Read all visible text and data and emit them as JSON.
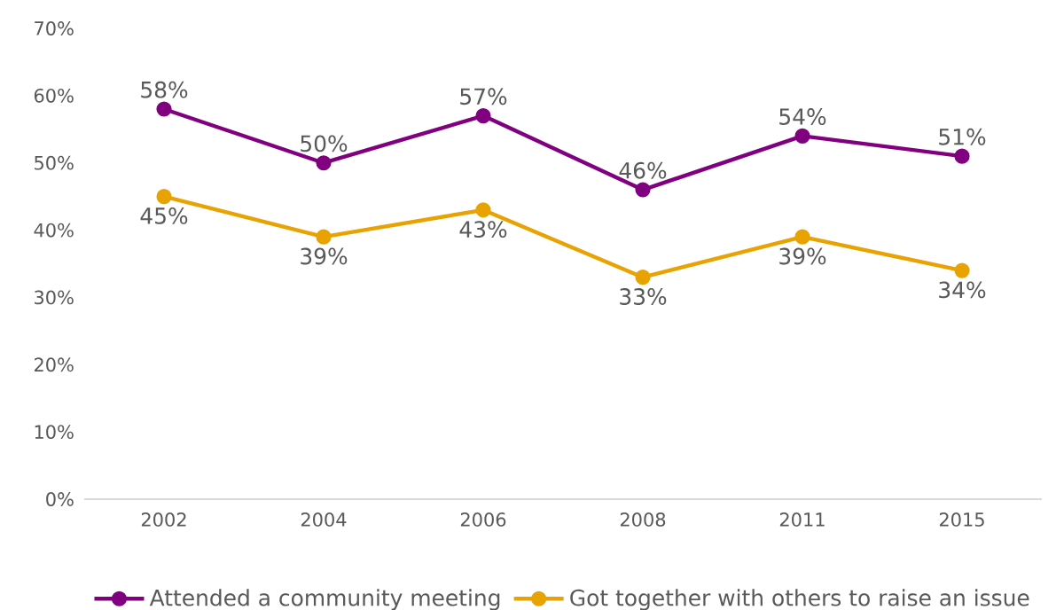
{
  "chart_data": {
    "type": "line",
    "categories": [
      "2002",
      "2004",
      "2006",
      "2008",
      "2011",
      "2015"
    ],
    "series": [
      {
        "name": "Attended a community meeting",
        "color": "#800080",
        "values": [
          58,
          50,
          57,
          46,
          54,
          51
        ],
        "value_labels": [
          "58%",
          "50%",
          "57%",
          "46%",
          "54%",
          "51%"
        ]
      },
      {
        "name": "Got together with others to raise an issue",
        "color": "#e8a202",
        "values": [
          45,
          39,
          43,
          33,
          39,
          34
        ],
        "value_labels": [
          "45%",
          "39%",
          "43%",
          "33%",
          "39%",
          "34%"
        ]
      }
    ],
    "ylim": [
      0,
      70
    ],
    "yticks": [
      {
        "value": 0,
        "label": "0%"
      },
      {
        "value": 10,
        "label": "10%"
      },
      {
        "value": 20,
        "label": "20%"
      },
      {
        "value": 30,
        "label": "30%"
      },
      {
        "value": 40,
        "label": "40%"
      },
      {
        "value": 50,
        "label": "50%"
      },
      {
        "value": 60,
        "label": "60%"
      },
      {
        "value": 70,
        "label": "70%"
      }
    ],
    "grid": false,
    "legend": "bottom",
    "marker": "circle",
    "line_style": "solid"
  }
}
